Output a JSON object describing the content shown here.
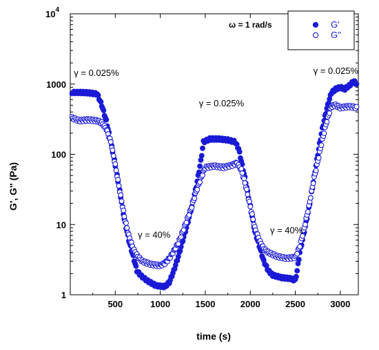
{
  "chart_data": {
    "type": "scatter",
    "xlabel": "time (s)",
    "ylabel": "G', G'' (Pa)",
    "xlim": [
      0,
      3200
    ],
    "ylim": [
      1,
      10000
    ],
    "y_scale": "log",
    "grid": false,
    "legend_position": "top-right",
    "x_ticks": [
      {
        "value": 500,
        "label": "500"
      },
      {
        "value": 1000,
        "label": "1000"
      },
      {
        "value": 1500,
        "label": "1500"
      },
      {
        "value": 2000,
        "label": "2000"
      },
      {
        "value": 2500,
        "label": "2500"
      },
      {
        "value": 3000,
        "label": "3000"
      }
    ],
    "y_ticks": [
      {
        "value": 1,
        "label": "1"
      },
      {
        "value": 10,
        "label": "10"
      },
      {
        "value": 100,
        "label": "100"
      },
      {
        "value": 1000,
        "label": "1000"
      },
      {
        "value": 10000,
        "label": "10",
        "exponent": "4"
      }
    ],
    "legend": {
      "title": "ω = 1 rad/s",
      "entries": [
        {
          "label": "G'",
          "marker": "filled"
        },
        {
          "label": "G''",
          "marker": "open"
        }
      ]
    },
    "annotations": [
      {
        "text": "γ = 0.025%",
        "x": 40,
        "y": 1300
      },
      {
        "text": "γ = 40%",
        "x": 750,
        "y": 6.5
      },
      {
        "text": "γ = 0.025%",
        "x": 1430,
        "y": 480
      },
      {
        "text": "γ = 40%",
        "x": 2220,
        "y": 7.5
      },
      {
        "text": "γ = 0.025%",
        "x": 2700,
        "y": 1400
      }
    ],
    "series": [
      {
        "name": "G'",
        "color": "#1a1ad6",
        "marker": "filled",
        "x": [
          20,
          100,
          200,
          300,
          350,
          400,
          450,
          500,
          550,
          600,
          650,
          700,
          740,
          780,
          850,
          950,
          1050,
          1100,
          1150,
          1200,
          1250,
          1300,
          1350,
          1400,
          1450,
          1480,
          1550,
          1650,
          1750,
          1830,
          1870,
          1900,
          1950,
          2000,
          2050,
          2100,
          2150,
          2200,
          2250,
          2350,
          2450,
          2500,
          2520,
          2550,
          2600,
          2650,
          2700,
          2750,
          2800,
          2850,
          2900,
          2950,
          3000,
          3050,
          3100,
          3150,
          3180
        ],
        "y": [
          760,
          760,
          750,
          720,
          500,
          300,
          150,
          70,
          30,
          12,
          6,
          3.5,
          2.2,
          1.9,
          1.6,
          1.35,
          1.3,
          1.5,
          2.2,
          3.5,
          6,
          10,
          18,
          35,
          80,
          150,
          165,
          165,
          160,
          150,
          120,
          80,
          40,
          18,
          8,
          5,
          3,
          2.2,
          1.9,
          1.75,
          1.7,
          1.6,
          2.2,
          4,
          8,
          17,
          40,
          100,
          230,
          450,
          750,
          850,
          900,
          850,
          950,
          1100,
          1000
        ]
      },
      {
        "name": "G''",
        "color": "#1a1ad6",
        "marker": "open",
        "x": [
          20,
          100,
          200,
          300,
          350,
          400,
          450,
          500,
          550,
          600,
          650,
          700,
          750,
          800,
          900,
          1000,
          1050,
          1100,
          1150,
          1200,
          1250,
          1300,
          1350,
          1400,
          1450,
          1500,
          1600,
          1700,
          1800,
          1850,
          1900,
          1950,
          2000,
          2050,
          2100,
          2150,
          2200,
          2300,
          2400,
          2500,
          2550,
          2600,
          2650,
          2700,
          2750,
          2800,
          2850,
          2900,
          2950,
          3000,
          3100,
          3180
        ],
        "y": [
          330,
          300,
          310,
          300,
          280,
          230,
          150,
          70,
          30,
          13,
          7,
          4.5,
          3.5,
          3.0,
          2.7,
          2.6,
          2.8,
          3.3,
          4.2,
          5.5,
          8,
          12,
          18,
          30,
          45,
          65,
          68,
          65,
          70,
          75,
          60,
          35,
          18,
          9,
          6,
          4.5,
          4.0,
          3.5,
          3.3,
          3.4,
          5,
          9,
          18,
          40,
          80,
          160,
          300,
          480,
          500,
          460,
          480,
          460
        ]
      }
    ]
  }
}
